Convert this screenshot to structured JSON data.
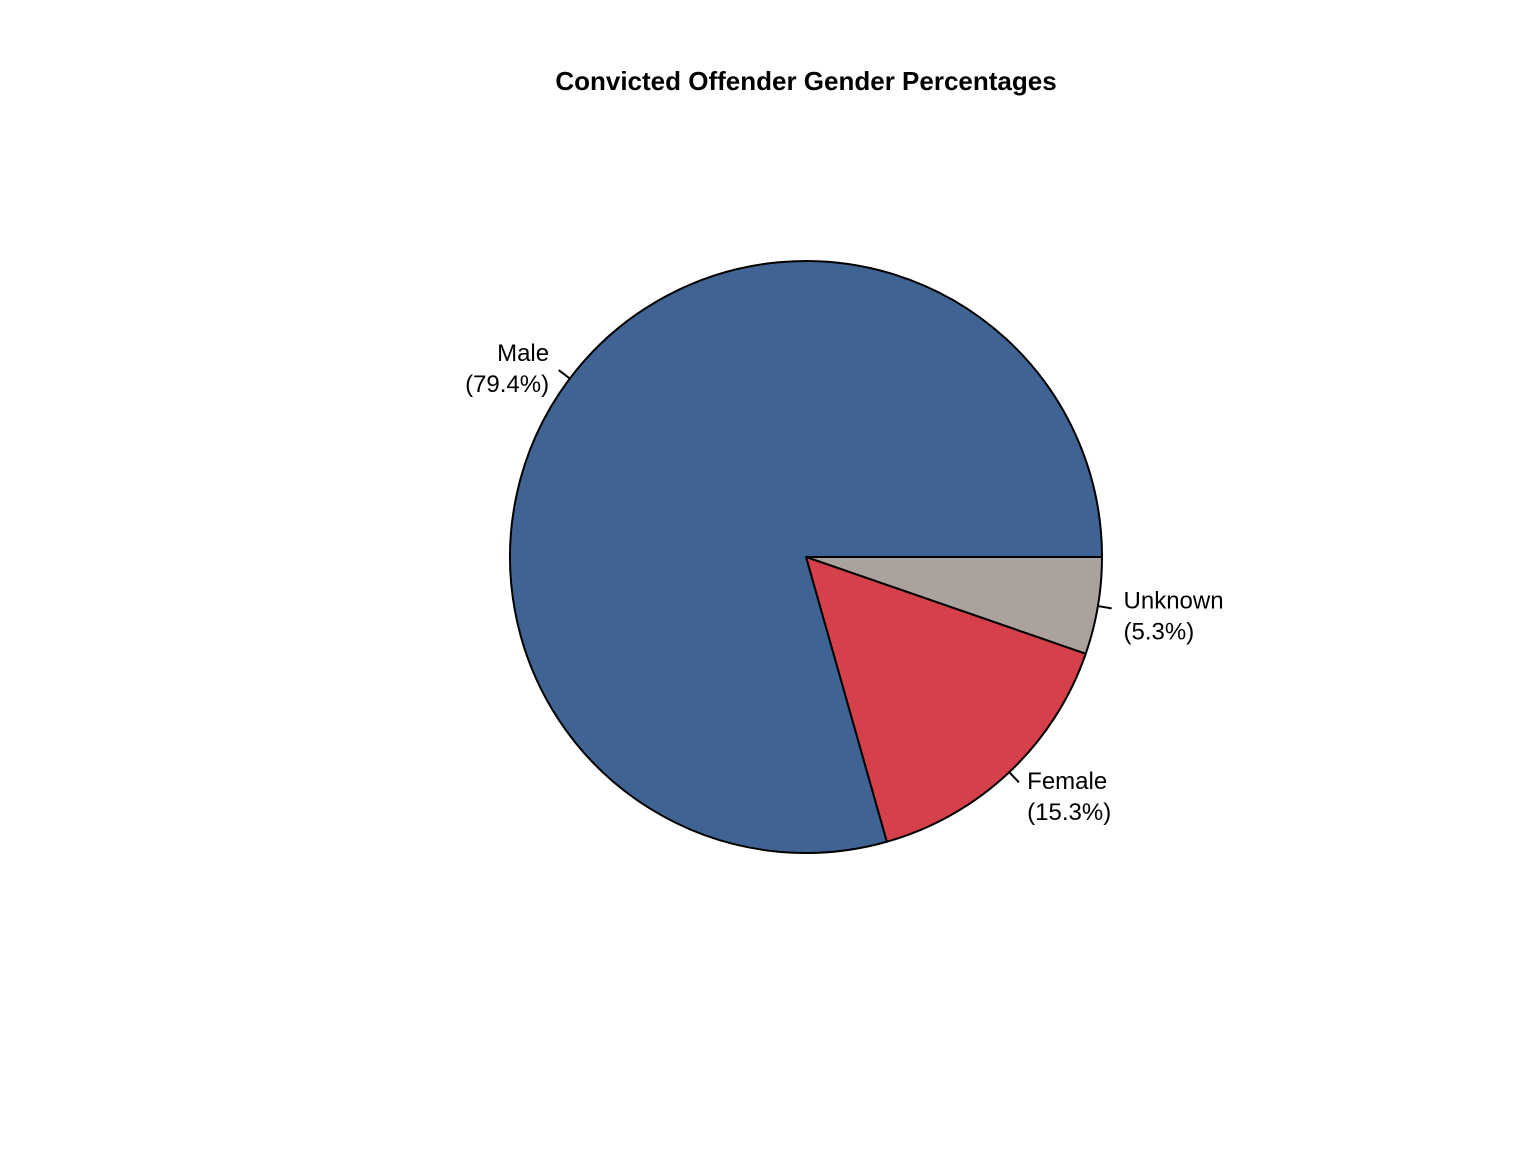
{
  "chart_data": {
    "type": "pie",
    "title": "Convicted Offender Gender Percentages",
    "slices": [
      {
        "name": "Unknown",
        "value": 5.3,
        "label": "(5.3%)",
        "color": "#aba29d"
      },
      {
        "name": "Female",
        "value": 15.3,
        "label": "(15.3%)",
        "color": "#d6404a"
      },
      {
        "name": "Male",
        "value": 79.4,
        "label": "(79.4%)",
        "color": "#3f6494"
      }
    ],
    "direction": "clockwise",
    "start_angle": "3 o'clock"
  }
}
